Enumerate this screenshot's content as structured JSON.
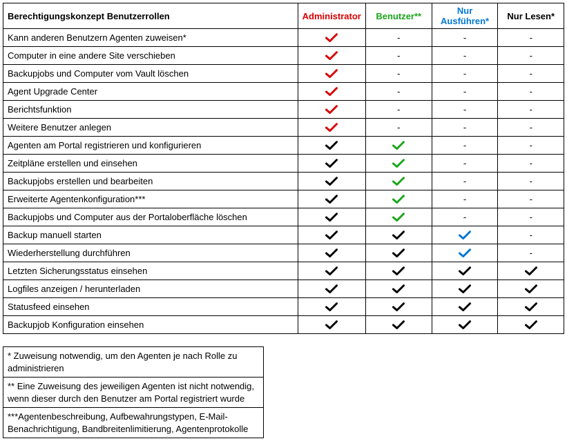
{
  "colors": {
    "admin": "#d90000",
    "user": "#1aa61a",
    "execute": "#0078d4",
    "read": "#000000",
    "black": "#000000",
    "dash": "#000000"
  },
  "header": {
    "feature": "Berechtigungskonzept Benutzerrollen",
    "roles": [
      "Administrator",
      "Benutzer**",
      "Nur Ausführen*",
      "Nur Lesen*"
    ]
  },
  "role_colors": [
    "#d90000",
    "#1aa61a",
    "#0078d4",
    "#000000"
  ],
  "rows": [
    {
      "label": "Kann anderen Benutzern Agenten zuweisen*",
      "cells": [
        "check-red",
        "dash",
        "dash",
        "dash"
      ]
    },
    {
      "label": "Computer in eine andere Site verschieben",
      "cells": [
        "check-red",
        "dash",
        "dash",
        "dash"
      ]
    },
    {
      "label": "Backupjobs und Computer vom Vault löschen",
      "cells": [
        "check-red",
        "dash",
        "dash",
        "dash"
      ]
    },
    {
      "label": "Agent Upgrade Center",
      "cells": [
        "check-red",
        "dash",
        "dash",
        "dash"
      ]
    },
    {
      "label": "Berichtsfunktion",
      "cells": [
        "check-red",
        "dash",
        "dash",
        "dash"
      ]
    },
    {
      "label": "Weitere Benutzer anlegen",
      "cells": [
        "check-red",
        "dash",
        "dash",
        "dash"
      ]
    },
    {
      "label": "Agenten am Portal registrieren und konfigurieren",
      "cells": [
        "check-black",
        "check-green",
        "dash",
        "dash"
      ]
    },
    {
      "label": "Zeitpläne erstellen und einsehen",
      "cells": [
        "check-black",
        "check-green",
        "dash",
        "dash"
      ]
    },
    {
      "label": "Backupjobs erstellen und bearbeiten",
      "cells": [
        "check-black",
        "check-green",
        "dash",
        "dash"
      ]
    },
    {
      "label": "Erweiterte Agentenkonfiguration***",
      "cells": [
        "check-black",
        "check-green",
        "dash",
        "dash"
      ]
    },
    {
      "label": "Backupjobs und Computer aus der Portaloberfläche löschen",
      "cells": [
        "check-black",
        "check-green",
        "dash",
        "dash"
      ]
    },
    {
      "label": "Backup manuell starten",
      "cells": [
        "check-black",
        "check-black",
        "check-blue",
        "dash"
      ]
    },
    {
      "label": "Wiederherstellung durchführen",
      "cells": [
        "check-black",
        "check-black",
        "check-blue",
        "dash"
      ]
    },
    {
      "label": "Letzten Sicherungsstatus einsehen",
      "cells": [
        "check-black",
        "check-black",
        "check-black",
        "check-black"
      ]
    },
    {
      "label": "Logfiles anzeigen / herunterladen",
      "cells": [
        "check-black",
        "check-black",
        "check-black",
        "check-black"
      ]
    },
    {
      "label": "Statusfeed einsehen",
      "cells": [
        "check-black",
        "check-black",
        "check-black",
        "check-black"
      ]
    },
    {
      "label": "Backupjob Konfiguration einsehen",
      "cells": [
        "check-black",
        "check-black",
        "check-black",
        "check-black"
      ]
    }
  ],
  "notes": [
    "* Zuweisung notwendig, um den Agenten je nach Rolle zu administrieren",
    "** Eine Zuweisung des jeweiligen Agenten ist nicht notwendig, wenn dieser durch den Benutzer am Portal registriert wurde",
    "***Agentenbeschreibung, Aufbewahrungstypen, E-Mail-Benachrichtigung, Bandbreitenlimitierung, Agentenprotokolle"
  ],
  "check_colors": {
    "check-red": "#d90000",
    "check-green": "#1aa61a",
    "check-blue": "#0078d4",
    "check-black": "#000000"
  }
}
